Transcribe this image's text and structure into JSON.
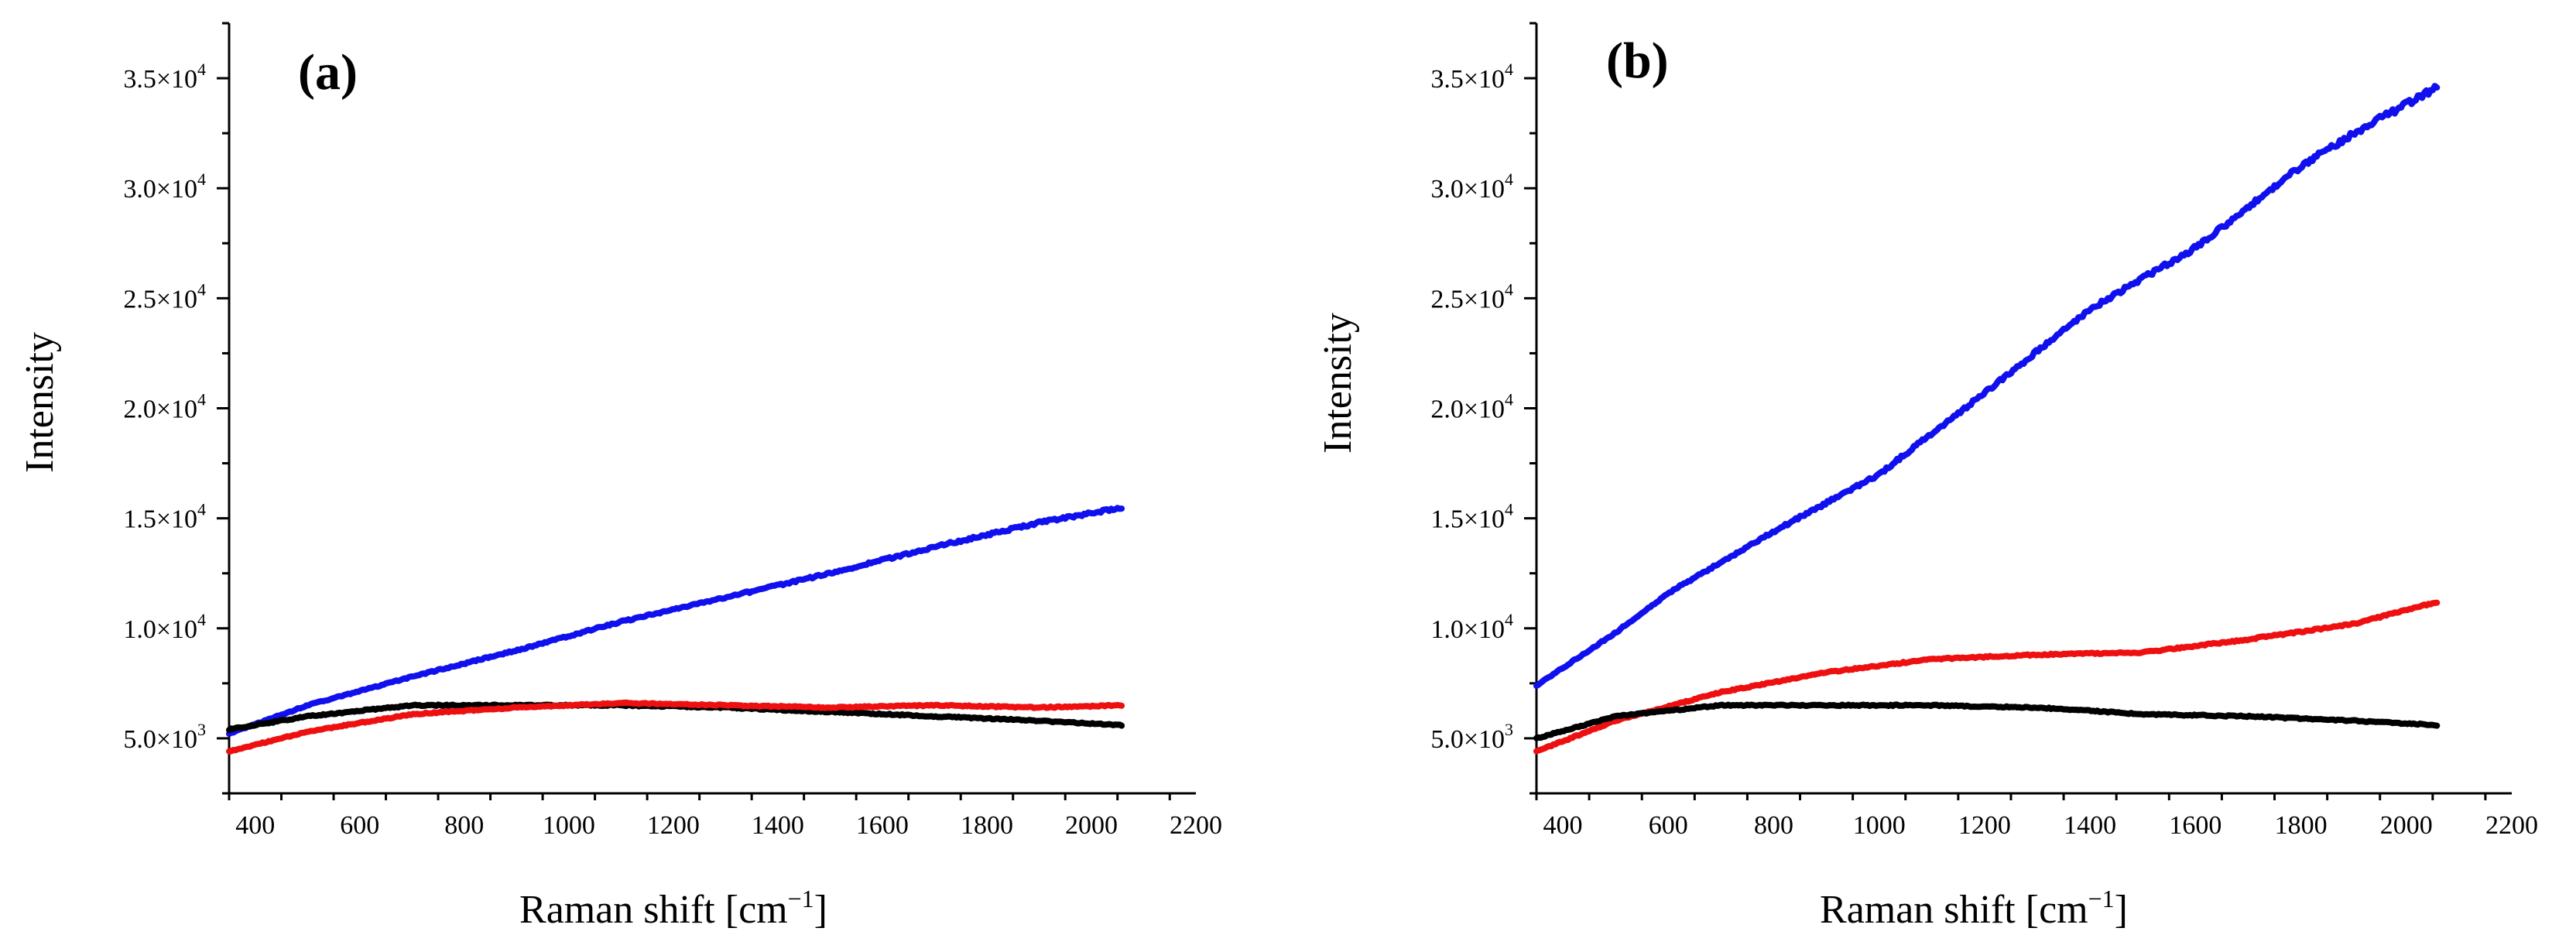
{
  "chart_data": [
    {
      "type": "line",
      "panel_label": "(a)",
      "xlabel": "Raman shift [cm",
      "xlabel_sup": "−1",
      "xlabel_end": "]",
      "ylabel": "Intensity",
      "xlim": [
        350,
        2200
      ],
      "ylim": [
        2500,
        37500
      ],
      "xticks": [
        400,
        600,
        800,
        1000,
        1200,
        1400,
        1600,
        1800,
        2000,
        2200
      ],
      "yticks": [
        {
          "value": 5000,
          "mantissa": "5.0×10",
          "exp": "3"
        },
        {
          "value": 10000,
          "mantissa": "1.0×10",
          "exp": "4"
        },
        {
          "value": 15000,
          "mantissa": "1.5×10",
          "exp": "4"
        },
        {
          "value": 20000,
          "mantissa": "2.0×10",
          "exp": "4"
        },
        {
          "value": 25000,
          "mantissa": "2.5×10",
          "exp": "4"
        },
        {
          "value": 30000,
          "mantissa": "3.0×10",
          "exp": "4"
        },
        {
          "value": 35000,
          "mantissa": "3.5×10",
          "exp": "4"
        }
      ],
      "series": [
        {
          "name": "blue",
          "color": "#1010ee",
          "x": [
            350,
            500,
            700,
            900,
            1100,
            1300,
            1500,
            1700,
            1900,
            2060
          ],
          "y": [
            5200,
            6500,
            7800,
            9000,
            10300,
            11400,
            12500,
            13700,
            14800,
            15500
          ]
        },
        {
          "name": "black",
          "color": "#000000",
          "x": [
            350,
            500,
            700,
            900,
            1100,
            1300,
            1500,
            1700,
            1900,
            2060
          ],
          "y": [
            5400,
            6000,
            6500,
            6500,
            6500,
            6400,
            6200,
            6000,
            5800,
            5600
          ]
        },
        {
          "name": "red",
          "color": "#ee1010",
          "x": [
            350,
            500,
            700,
            900,
            1100,
            1300,
            1500,
            1700,
            1900,
            2060
          ],
          "y": [
            4400,
            5300,
            6100,
            6400,
            6600,
            6500,
            6400,
            6500,
            6400,
            6500
          ]
        }
      ]
    },
    {
      "type": "line",
      "panel_label": "(b)",
      "xlabel": "Raman shift [cm",
      "xlabel_sup": "−1",
      "xlabel_end": "]",
      "ylabel": "Intensity",
      "xlim": [
        350,
        2200
      ],
      "ylim": [
        2500,
        37500
      ],
      "xticks": [
        400,
        600,
        800,
        1000,
        1200,
        1400,
        1600,
        1800,
        2000,
        2200
      ],
      "yticks": [
        {
          "value": 5000,
          "mantissa": "5.0×10",
          "exp": "3"
        },
        {
          "value": 10000,
          "mantissa": "1.0×10",
          "exp": "4"
        },
        {
          "value": 15000,
          "mantissa": "1.5×10",
          "exp": "4"
        },
        {
          "value": 20000,
          "mantissa": "2.0×10",
          "exp": "4"
        },
        {
          "value": 25000,
          "mantissa": "2.5×10",
          "exp": "4"
        },
        {
          "value": 30000,
          "mantissa": "3.0×10",
          "exp": "4"
        },
        {
          "value": 35000,
          "mantissa": "3.5×10",
          "exp": "4"
        }
      ],
      "series": [
        {
          "name": "blue",
          "color": "#1010ee",
          "x": [
            350,
            500,
            600,
            800,
            1000,
            1200,
            1400,
            1600,
            1800,
            1900,
            2060
          ],
          "y": [
            7400,
            9800,
            11600,
            14400,
            17000,
            20700,
            24500,
            27300,
            31000,
            32500,
            34600
          ]
        },
        {
          "name": "red",
          "color": "#ee1010",
          "x": [
            350,
            500,
            700,
            900,
            1100,
            1300,
            1500,
            1700,
            1900,
            2060
          ],
          "y": [
            4400,
            5800,
            7100,
            8000,
            8600,
            8800,
            8900,
            9500,
            10200,
            11200
          ]
        },
        {
          "name": "black",
          "color": "#000000",
          "x": [
            350,
            500,
            700,
            900,
            1100,
            1300,
            1500,
            1700,
            1900,
            2060
          ],
          "y": [
            5000,
            6000,
            6500,
            6500,
            6500,
            6400,
            6100,
            6000,
            5800,
            5600
          ]
        }
      ]
    }
  ]
}
